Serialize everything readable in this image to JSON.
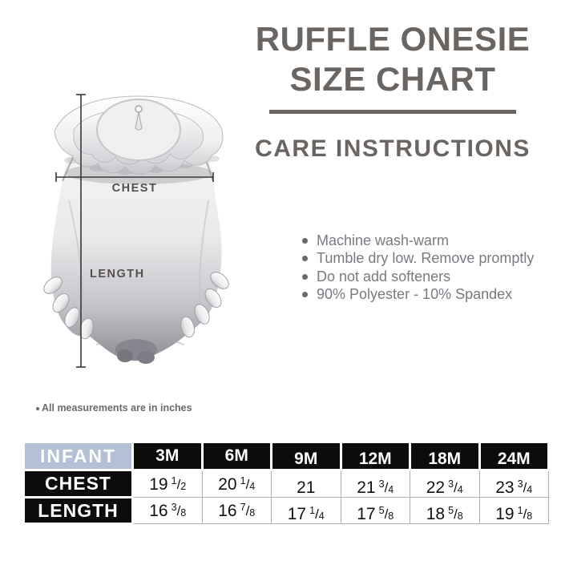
{
  "title": {
    "line1": "RUFFLE ONESIE",
    "line2": "SIZE CHART"
  },
  "care": {
    "heading": "CARE INSTRUCTIONS",
    "items": [
      "Machine wash-warm",
      "Tumble dry low. Remove promptly",
      "Do not add softeners",
      "90% Polyester - 10% Spandex"
    ]
  },
  "diagram": {
    "chest_label": "CHEST",
    "length_label": "LENGTH"
  },
  "footnote": "All measurements are in inches",
  "size_table": {
    "corner_label": "INFANT",
    "columns": [
      "3M",
      "6M",
      "9M",
      "12M",
      "18M",
      "24M"
    ],
    "rows": [
      {
        "label": "CHEST",
        "values": [
          {
            "whole": "19",
            "num": "1",
            "den": "2"
          },
          {
            "whole": "20",
            "num": "1",
            "den": "4"
          },
          {
            "whole": "21",
            "num": "",
            "den": ""
          },
          {
            "whole": "21",
            "num": "3",
            "den": "4"
          },
          {
            "whole": "22",
            "num": "3",
            "den": "4"
          },
          {
            "whole": "23",
            "num": "3",
            "den": "4"
          }
        ]
      },
      {
        "label": "LENGTH",
        "values": [
          {
            "whole": "16",
            "num": "3",
            "den": "8"
          },
          {
            "whole": "16",
            "num": "7",
            "den": "8"
          },
          {
            "whole": "17",
            "num": "1",
            "den": "4"
          },
          {
            "whole": "17",
            "num": "5",
            "den": "8"
          },
          {
            "whole": "18",
            "num": "5",
            "den": "8"
          },
          {
            "whole": "19",
            "num": "1",
            "den": "8"
          }
        ]
      }
    ]
  },
  "colors": {
    "heading_gray": "#6b6561",
    "body_text_gray": "#7d7781",
    "measure_label_gray": "#55504e",
    "infant_header_bg": "#b3c0d5",
    "size_header_bg": "#0c0c0c",
    "table_border": "#aab0b6"
  }
}
